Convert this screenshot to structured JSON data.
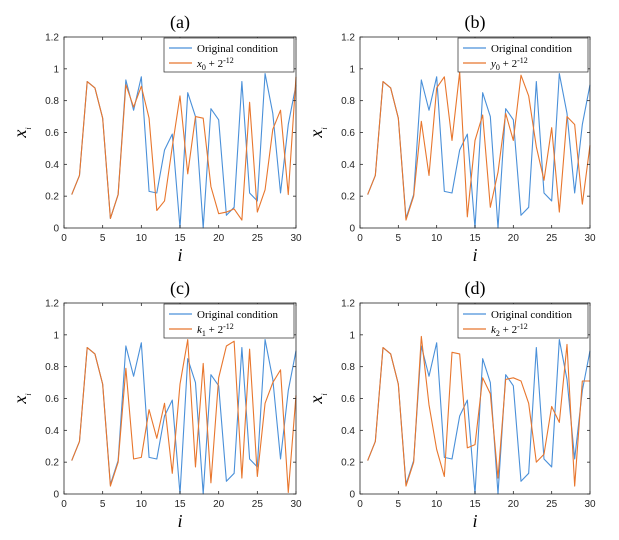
{
  "chart_data": [
    {
      "type": "line",
      "panel_label": "(a)",
      "xlabel": "i",
      "ylabel": "x",
      "ylabel_sub": "i",
      "xlim": [
        0,
        30
      ],
      "ylim": [
        0,
        1.2
      ],
      "xticks": [
        0,
        5,
        10,
        15,
        20,
        25,
        30
      ],
      "yticks": [
        0,
        0.2,
        0.4,
        0.6,
        0.8,
        1,
        1.2
      ],
      "ytick_labels": [
        "0",
        "0.2",
        "0.4",
        "0.6",
        "0.8",
        "1",
        "1.2"
      ],
      "legend_position": "top-right",
      "x": [
        1,
        2,
        3,
        4,
        5,
        6,
        7,
        8,
        9,
        10,
        11,
        12,
        13,
        14,
        15,
        16,
        17,
        18,
        19,
        20,
        21,
        22,
        23,
        24,
        25,
        26,
        27,
        28,
        29,
        30
      ],
      "series": [
        {
          "name": "Original condition",
          "color": "#4a90d9",
          "values": [
            0.21,
            0.33,
            0.92,
            0.88,
            0.69,
            0.06,
            0.21,
            0.93,
            0.74,
            0.95,
            0.23,
            0.22,
            0.49,
            0.59,
            0.0,
            0.85,
            0.7,
            0.0,
            0.75,
            0.68,
            0.08,
            0.13,
            0.92,
            0.22,
            0.17,
            0.97,
            0.72,
            0.22,
            0.65,
            0.9
          ]
        },
        {
          "name_main": "x",
          "name_sub": "0",
          "name_rest": " + 2",
          "name_sup": "-12",
          "color": "#e8762d",
          "values": [
            0.21,
            0.33,
            0.92,
            0.88,
            0.69,
            0.06,
            0.21,
            0.9,
            0.76,
            0.89,
            0.69,
            0.11,
            0.17,
            0.51,
            0.83,
            0.34,
            0.7,
            0.69,
            0.26,
            0.09,
            0.1,
            0.12,
            0.05,
            0.79,
            0.1,
            0.24,
            0.62,
            0.74,
            0.21,
            0.95
          ]
        }
      ]
    },
    {
      "type": "line",
      "panel_label": "(b)",
      "xlabel": "i",
      "ylabel": "x",
      "ylabel_sub": "i",
      "xlim": [
        0,
        30
      ],
      "ylim": [
        0,
        1.2
      ],
      "xticks": [
        0,
        5,
        10,
        15,
        20,
        25,
        30
      ],
      "yticks": [
        0,
        0.2,
        0.4,
        0.6,
        0.8,
        1,
        1.2
      ],
      "ytick_labels": [
        "0",
        "0.2",
        "0.4",
        "0.6",
        "0.8",
        "1",
        "1.2"
      ],
      "legend_position": "top-right",
      "x": [
        1,
        2,
        3,
        4,
        5,
        6,
        7,
        8,
        9,
        10,
        11,
        12,
        13,
        14,
        15,
        16,
        17,
        18,
        19,
        20,
        21,
        22,
        23,
        24,
        25,
        26,
        27,
        28,
        29,
        30
      ],
      "series": [
        {
          "name": "Original condition",
          "color": "#4a90d9",
          "values": [
            0.21,
            0.33,
            0.92,
            0.88,
            0.69,
            0.06,
            0.21,
            0.93,
            0.74,
            0.95,
            0.23,
            0.22,
            0.49,
            0.59,
            0.0,
            0.85,
            0.7,
            0.0,
            0.75,
            0.68,
            0.08,
            0.13,
            0.92,
            0.22,
            0.17,
            0.97,
            0.72,
            0.22,
            0.65,
            0.9
          ]
        },
        {
          "name_main": "y",
          "name_sub": "0",
          "name_rest": " + 2",
          "name_sup": "-12",
          "color": "#e8762d",
          "values": [
            0.21,
            0.33,
            0.92,
            0.88,
            0.69,
            0.05,
            0.2,
            0.67,
            0.33,
            0.88,
            0.95,
            0.55,
            0.98,
            0.07,
            0.55,
            0.71,
            0.13,
            0.35,
            0.72,
            0.55,
            0.96,
            0.83,
            0.51,
            0.3,
            0.63,
            0.1,
            0.7,
            0.65,
            0.15,
            0.52
          ]
        }
      ]
    },
    {
      "type": "line",
      "panel_label": "(c)",
      "xlabel": "i",
      "ylabel": "x",
      "ylabel_sub": "i",
      "xlim": [
        0,
        30
      ],
      "ylim": [
        0,
        1.2
      ],
      "xticks": [
        0,
        5,
        10,
        15,
        20,
        25,
        30
      ],
      "yticks": [
        0,
        0.2,
        0.4,
        0.6,
        0.8,
        1,
        1.2
      ],
      "ytick_labels": [
        "0",
        "0.2",
        "0.4",
        "0.6",
        "0.8",
        "1",
        "1.2"
      ],
      "legend_position": "top-right",
      "x": [
        1,
        2,
        3,
        4,
        5,
        6,
        7,
        8,
        9,
        10,
        11,
        12,
        13,
        14,
        15,
        16,
        17,
        18,
        19,
        20,
        21,
        22,
        23,
        24,
        25,
        26,
        27,
        28,
        29,
        30
      ],
      "series": [
        {
          "name": "Original condition",
          "color": "#4a90d9",
          "values": [
            0.21,
            0.33,
            0.92,
            0.88,
            0.69,
            0.06,
            0.21,
            0.93,
            0.74,
            0.95,
            0.23,
            0.22,
            0.49,
            0.59,
            0.0,
            0.85,
            0.7,
            0.0,
            0.75,
            0.68,
            0.08,
            0.13,
            0.92,
            0.22,
            0.17,
            0.97,
            0.72,
            0.22,
            0.65,
            0.9
          ]
        },
        {
          "name_main": "k",
          "name_sub": "1",
          "name_rest": " + 2",
          "name_sup": "-12",
          "color": "#e8762d",
          "values": [
            0.21,
            0.33,
            0.92,
            0.88,
            0.69,
            0.05,
            0.2,
            0.79,
            0.22,
            0.23,
            0.53,
            0.35,
            0.57,
            0.13,
            0.69,
            0.97,
            0.17,
            0.82,
            0.07,
            0.73,
            0.93,
            0.96,
            0.1,
            0.91,
            0.11,
            0.57,
            0.7,
            0.78,
            0.01,
            0.62
          ]
        }
      ]
    },
    {
      "type": "line",
      "panel_label": "(d)",
      "xlabel": "i",
      "ylabel": "x",
      "ylabel_sub": "i",
      "xlim": [
        0,
        30
      ],
      "ylim": [
        0,
        1.2
      ],
      "xticks": [
        0,
        5,
        10,
        15,
        20,
        25,
        30
      ],
      "yticks": [
        0,
        0.2,
        0.4,
        0.6,
        0.8,
        1,
        1.2
      ],
      "ytick_labels": [
        "0",
        "0.2",
        "0.4",
        "0.6",
        "0.8",
        "1",
        "1.2"
      ],
      "legend_position": "top-right",
      "x": [
        1,
        2,
        3,
        4,
        5,
        6,
        7,
        8,
        9,
        10,
        11,
        12,
        13,
        14,
        15,
        16,
        17,
        18,
        19,
        20,
        21,
        22,
        23,
        24,
        25,
        26,
        27,
        28,
        29,
        30
      ],
      "series": [
        {
          "name": "Original condition",
          "color": "#4a90d9",
          "values": [
            0.21,
            0.33,
            0.92,
            0.88,
            0.69,
            0.06,
            0.21,
            0.93,
            0.74,
            0.95,
            0.23,
            0.22,
            0.49,
            0.59,
            0.0,
            0.85,
            0.7,
            0.0,
            0.75,
            0.68,
            0.08,
            0.13,
            0.92,
            0.22,
            0.17,
            0.97,
            0.72,
            0.22,
            0.65,
            0.9
          ]
        },
        {
          "name_main": "k",
          "name_sub": "2",
          "name_rest": " + 2",
          "name_sup": "-12",
          "color": "#e8762d",
          "values": [
            0.21,
            0.33,
            0.92,
            0.88,
            0.69,
            0.05,
            0.2,
            0.99,
            0.56,
            0.28,
            0.11,
            0.89,
            0.88,
            0.29,
            0.31,
            0.73,
            0.63,
            0.1,
            0.72,
            0.73,
            0.71,
            0.57,
            0.2,
            0.25,
            0.55,
            0.45,
            0.94,
            0.05,
            0.71,
            0.71
          ]
        }
      ]
    }
  ]
}
